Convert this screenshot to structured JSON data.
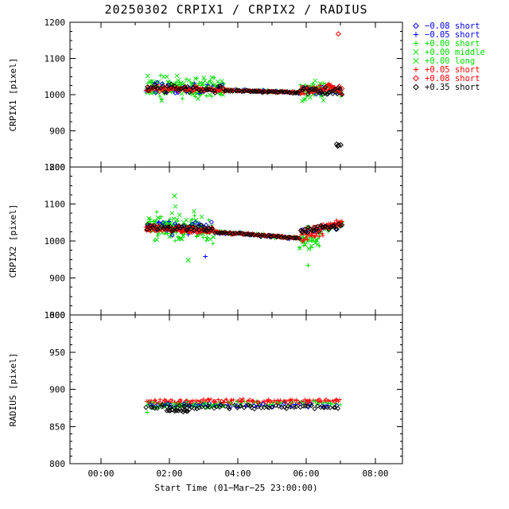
{
  "chart_data": {
    "type": "scatter",
    "title": "20250302 CRPIX1 / CRPIX2 / RADIUS",
    "xlabel": "Start Time (01−Mar−25 23:00:00)",
    "x_range": [
      -0.9,
      8.8
    ],
    "x_ticks": [
      {
        "t": 0,
        "label": "00:00"
      },
      {
        "t": 2,
        "label": "02:00"
      },
      {
        "t": 4,
        "label": "04:00"
      },
      {
        "t": 6,
        "label": "06:00"
      },
      {
        "t": 8,
        "label": "08:00"
      }
    ],
    "x_minor_hours": [
      1,
      3,
      5,
      7
    ],
    "grid": false,
    "legend_position": "top-right",
    "legend": [
      {
        "symbol": "diamond",
        "color": "#0000ff",
        "label": "−0.08 short"
      },
      {
        "symbol": "plus",
        "color": "#0000ff",
        "label": "−0.05 short"
      },
      {
        "symbol": "plus",
        "color": "#00dd00",
        "label": "+0.00 short"
      },
      {
        "symbol": "cross",
        "color": "#00dd00",
        "label": "+0.00 middle"
      },
      {
        "symbol": "cross",
        "color": "#00dd00",
        "label": "+0.00 long"
      },
      {
        "symbol": "plus",
        "color": "#ff0000",
        "label": "+0.05 short"
      },
      {
        "symbol": "diamond",
        "color": "#ff0000",
        "label": "+0.08 short"
      },
      {
        "symbol": "diamond",
        "color": "#000000",
        "label": "+0.35 short"
      }
    ],
    "panels": [
      {
        "ylabel": "CRPIX1 [pixel]",
        "ylim": [
          800,
          1200
        ],
        "yticks": [
          800,
          900,
          1000,
          1100,
          1200
        ],
        "y_minor_step": 25,
        "bands": [
          {
            "series": 2,
            "segments": [
              [
                1.3,
                3.6,
                80,
                1020,
                1018,
                42
              ],
              [
                3.6,
                5.8,
                45,
                1014,
                1006,
                6
              ],
              [
                5.8,
                6.6,
                30,
                1008,
                1018,
                35
              ],
              [
                6.6,
                7.05,
                22,
                1026,
                1000,
                14
              ]
            ]
          },
          {
            "series": 3,
            "segments": [
              [
                1.35,
                3.6,
                50,
                1024,
                1020,
                48
              ],
              [
                5.8,
                6.5,
                18,
                1005,
                1015,
                42
              ]
            ]
          },
          {
            "series": 4,
            "segments": [
              [
                1.4,
                3.5,
                28,
                1016,
                1016,
                30
              ]
            ]
          },
          {
            "series": 0,
            "segments": [
              [
                1.3,
                3.6,
                22,
                1020,
                1016,
                24
              ],
              [
                3.6,
                5.8,
                16,
                1013,
                1006,
                5
              ],
              [
                5.85,
                7.0,
                12,
                1010,
                1012,
                20
              ]
            ]
          },
          {
            "series": 1,
            "segments": [
              [
                1.3,
                3.55,
                18,
                1018,
                1016,
                22
              ],
              [
                3.7,
                5.8,
                12,
                1012,
                1006,
                5
              ]
            ]
          },
          {
            "series": 5,
            "segments": [
              [
                1.3,
                3.6,
                70,
                1018,
                1014,
                12
              ],
              [
                3.6,
                5.8,
                70,
                1013,
                1006,
                3
              ],
              [
                5.8,
                6.6,
                28,
                1008,
                1015,
                18
              ],
              [
                6.6,
                7.05,
                22,
                1030,
                1002,
                10
              ]
            ]
          },
          {
            "series": 6,
            "segments": [
              [
                1.3,
                3.6,
                40,
                1016,
                1013,
                10
              ],
              [
                3.6,
                5.8,
                35,
                1012,
                1006,
                3
              ],
              [
                5.8,
                7.05,
                25,
                1012,
                1015,
                14
              ]
            ]
          },
          {
            "series": 7,
            "segments": [
              [
                1.3,
                3.6,
                40,
                1019,
                1014,
                14
              ],
              [
                3.6,
                5.8,
                45,
                1012,
                1005,
                3
              ],
              [
                5.8,
                7.05,
                30,
                1012,
                1010,
                16
              ]
            ]
          }
        ],
        "outliers": [
          {
            "series": 6,
            "t": 6.93,
            "y": 1168
          },
          {
            "series": 7,
            "t": 6.88,
            "y": 863
          },
          {
            "series": 7,
            "t": 6.94,
            "y": 860
          },
          {
            "series": 7,
            "t": 7.0,
            "y": 861
          },
          {
            "series": 7,
            "t": 6.91,
            "y": 858
          }
        ]
      },
      {
        "ylabel": "CRPIX2 [pixel]",
        "ylim": [
          800,
          1200
        ],
        "yticks": [
          800,
          900,
          1000,
          1100,
          1200
        ],
        "y_minor_step": 25,
        "bands": [
          {
            "series": 2,
            "segments": [
              [
                1.3,
                3.3,
                80,
                1042,
                1030,
                55
              ],
              [
                3.3,
                5.8,
                45,
                1026,
                1008,
                8
              ],
              [
                5.8,
                6.4,
                26,
                1005,
                1015,
                45
              ],
              [
                6.4,
                7.05,
                22,
                1030,
                1048,
                18
              ]
            ]
          },
          {
            "series": 3,
            "segments": [
              [
                1.35,
                3.3,
                50,
                1048,
                1035,
                58
              ],
              [
                5.8,
                6.4,
                16,
                1000,
                1010,
                48
              ]
            ]
          },
          {
            "series": 4,
            "segments": [
              [
                1.4,
                3.2,
                28,
                1038,
                1030,
                38
              ]
            ]
          },
          {
            "series": 0,
            "segments": [
              [
                1.3,
                3.3,
                22,
                1040,
                1030,
                26
              ],
              [
                3.3,
                5.8,
                16,
                1024,
                1008,
                5
              ],
              [
                5.85,
                7.0,
                12,
                1025,
                1040,
                20
              ]
            ]
          },
          {
            "series": 1,
            "segments": [
              [
                1.3,
                3.3,
                18,
                1038,
                1030,
                24
              ],
              [
                3.4,
                5.8,
                12,
                1023,
                1008,
                5
              ]
            ]
          },
          {
            "series": 5,
            "segments": [
              [
                1.3,
                3.3,
                70,
                1036,
                1028,
                14
              ],
              [
                3.3,
                5.8,
                70,
                1025,
                1008,
                4
              ],
              [
                5.8,
                6.5,
                28,
                1012,
                1020,
                18
              ],
              [
                6.5,
                7.05,
                22,
                1040,
                1052,
                10
              ]
            ]
          },
          {
            "series": 6,
            "segments": [
              [
                1.3,
                3.3,
                40,
                1034,
                1027,
                12
              ],
              [
                3.3,
                5.8,
                35,
                1024,
                1008,
                4
              ],
              [
                5.8,
                7.05,
                25,
                1030,
                1045,
                14
              ]
            ]
          },
          {
            "series": 7,
            "segments": [
              [
                1.3,
                3.3,
                40,
                1040,
                1030,
                16
              ],
              [
                3.3,
                5.8,
                45,
                1024,
                1007,
                4
              ],
              [
                5.8,
                7.05,
                30,
                1028,
                1042,
                16
              ]
            ]
          }
        ],
        "outliers": [
          {
            "series": 1,
            "t": 3.05,
            "y": 958
          },
          {
            "series": 2,
            "t": 6.05,
            "y": 934
          },
          {
            "series": 3,
            "t": 2.55,
            "y": 948
          },
          {
            "series": 3,
            "t": 2.15,
            "y": 1122
          }
        ]
      },
      {
        "ylabel": "RADIUS [pixel]",
        "ylim": [
          800,
          1000
        ],
        "yticks": [
          800,
          850,
          900,
          950,
          1000
        ],
        "y_minor_step": 10,
        "bands": [
          {
            "series": 5,
            "segments": [
              [
                1.3,
                7.0,
                100,
                884,
                884,
                4
              ]
            ]
          },
          {
            "series": 2,
            "segments": [
              [
                1.3,
                7.0,
                80,
                880,
                881,
                5
              ]
            ]
          },
          {
            "series": 3,
            "segments": [
              [
                1.35,
                3.6,
                30,
                878,
                878,
                5
              ]
            ]
          },
          {
            "series": 4,
            "segments": [
              [
                1.4,
                3.4,
                18,
                879,
                879,
                4
              ]
            ]
          },
          {
            "series": 0,
            "segments": [
              [
                1.3,
                7.0,
                25,
                879,
                878,
                4
              ]
            ]
          },
          {
            "series": 1,
            "segments": [
              [
                1.35,
                6.9,
                18,
                878,
                878,
                4
              ]
            ]
          },
          {
            "series": 6,
            "segments": [
              [
                1.3,
                7.0,
                35,
                883,
                884,
                3
              ]
            ]
          },
          {
            "series": 7,
            "segments": [
              [
                1.3,
                7.0,
                70,
                876,
                876,
                4
              ],
              [
                1.9,
                2.6,
                18,
                871,
                872,
                3
              ]
            ]
          }
        ],
        "outliers": [
          {
            "series": 2,
            "t": 1.35,
            "y": 869
          }
        ]
      }
    ]
  }
}
